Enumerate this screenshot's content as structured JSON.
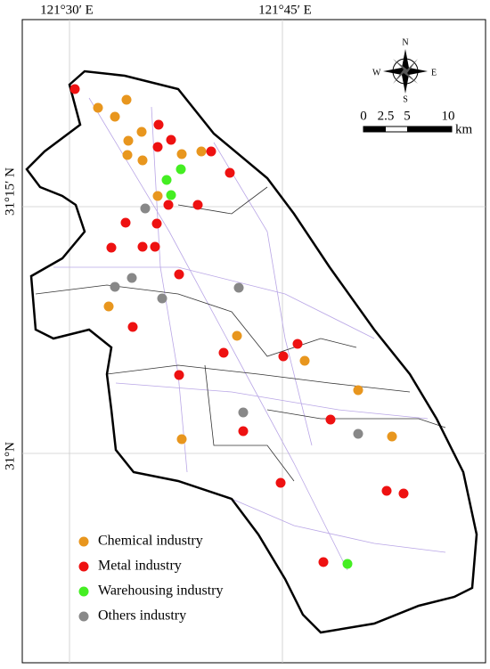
{
  "map": {
    "x_labels": [
      "121°30′ E",
      "121°45′ E"
    ],
    "y_labels": [
      "31°15′ N",
      "31°N"
    ],
    "compass": {
      "n": "N",
      "s": "S",
      "e": "E",
      "w": "W"
    },
    "scale": {
      "ticks": [
        "0",
        "2.5",
        "5",
        "10"
      ],
      "unit": "km"
    },
    "legend": [
      {
        "name": "Chemical industry",
        "color": "#e8961e"
      },
      {
        "name": "Metal industry",
        "color": "#ee1111"
      },
      {
        "name": "Warehousing industry",
        "color": "#44ee22"
      },
      {
        "name": "Others industry",
        "color": "#888888"
      }
    ]
  }
}
